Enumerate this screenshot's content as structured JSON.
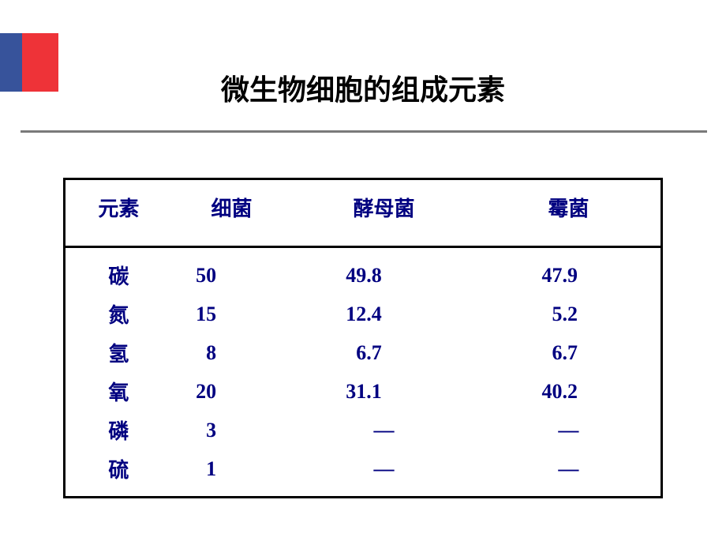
{
  "title": "微生物细胞的组成元素",
  "table": {
    "columns": [
      "元素",
      "细菌",
      "酵母菌",
      "霉菌"
    ],
    "rows": [
      [
        "碳",
        "50",
        "49.8",
        "47.9"
      ],
      [
        "氮",
        "15",
        "12.4",
        "5.2"
      ],
      [
        "氢",
        "8",
        "6.7",
        "6.7"
      ],
      [
        "氧",
        "20",
        "31.1",
        "40.2"
      ],
      [
        "磷",
        "3",
        "—",
        "—"
      ],
      [
        "硫",
        "1",
        "—",
        "—"
      ]
    ],
    "colors": {
      "text_color": "#000080",
      "border_color": "#000000",
      "title_color": "#000000",
      "accent_red": "#ee3338",
      "accent_blue": "#37539b",
      "divider_gray": "#7a7a7a",
      "background": "#ffffff"
    },
    "font_sizes": {
      "title": 36,
      "table": 26
    }
  }
}
